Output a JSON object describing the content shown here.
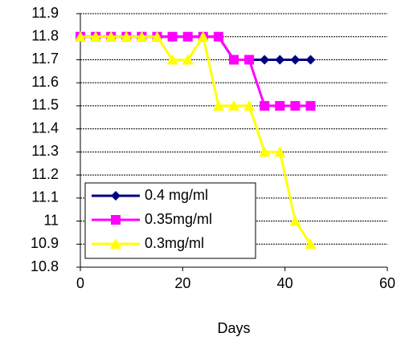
{
  "chart_data": {
    "type": "line",
    "x_label": "Days",
    "x": [
      0,
      3,
      6,
      9,
      12,
      15,
      18,
      21,
      24,
      27,
      30,
      33,
      36,
      39,
      42,
      45
    ],
    "series": [
      {
        "name": "0.4 mg/ml",
        "color": "#000080",
        "marker": "diamond",
        "values": [
          11.8,
          11.8,
          11.8,
          11.8,
          11.8,
          11.8,
          11.8,
          11.8,
          11.8,
          11.8,
          11.7,
          11.7,
          11.7,
          11.7,
          11.7,
          11.7
        ]
      },
      {
        "name": "0.35mg/ml",
        "color": "#ff00ff",
        "marker": "square",
        "values": [
          11.8,
          11.8,
          11.8,
          11.8,
          11.8,
          11.8,
          11.8,
          11.8,
          11.8,
          11.8,
          11.7,
          11.7,
          11.5,
          11.5,
          11.5,
          11.5
        ]
      },
      {
        "name": "0.3mg/ml",
        "color": "#ffff00",
        "marker": "triangle",
        "values": [
          11.8,
          11.8,
          11.8,
          11.8,
          11.8,
          11.8,
          11.7,
          11.7,
          11.8,
          11.5,
          11.5,
          11.5,
          11.3,
          11.3,
          11.0,
          10.9
        ]
      }
    ],
    "xlim": [
      0,
      60
    ],
    "xticks": [
      0,
      20,
      40,
      60
    ],
    "ylim": [
      10.8,
      11.9
    ],
    "yticks": [
      10.8,
      10.9,
      11,
      11.1,
      11.2,
      11.3,
      11.4,
      11.5,
      11.6,
      11.7,
      11.8,
      11.9
    ],
    "grid": true,
    "legend_position": "lower-left"
  }
}
